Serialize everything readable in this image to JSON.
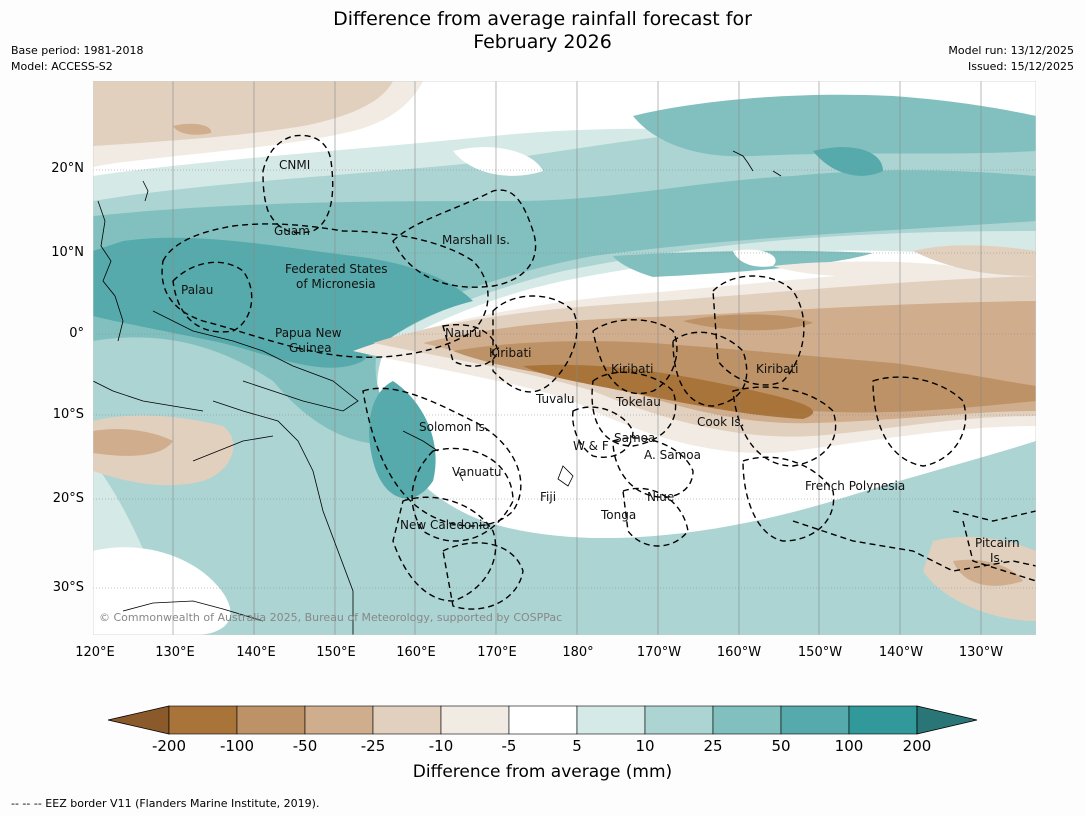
{
  "title": {
    "line1": "Difference from average rainfall forecast for",
    "line2": "February 2026"
  },
  "meta": {
    "base_period": "Base period: 1981-2018",
    "model": "Model: ACCESS-S2",
    "model_run": "Model run: 13/12/2025",
    "issued": "Issued: 15/12/2025"
  },
  "axes": {
    "lat_ticks": [
      "20°N",
      "10°N",
      "0°",
      "10°S",
      "20°S",
      "30°S"
    ],
    "lon_ticks": [
      "120°E",
      "130°E",
      "140°E",
      "150°E",
      "160°E",
      "170°E",
      "180°",
      "170°W",
      "160°W",
      "150°W",
      "140°W",
      "130°W"
    ]
  },
  "map_labels": {
    "cnmi": "CNMI",
    "guam": "Guam",
    "marshall": "Marshall Is.",
    "fsm_1": "Federated States",
    "fsm_2": "of Micronesia",
    "palau": "Palau",
    "png_1": "Papua New",
    "png_2": "Guinea",
    "nauru": "Nauru",
    "kiribati_w": "Kiribati",
    "kiribati_c": "Kiribati",
    "kiribati_e": "Kiribati",
    "tuvalu": "Tuvalu",
    "tokelau": "Tokelau",
    "cook": "Cook Is.",
    "solomon": "Solomon Is.",
    "samoa": "Samoa",
    "wf": "W & F",
    "asamoa": "A. Samoa",
    "vanuatu": "Vanuatu",
    "fiji": "Fiji",
    "niue": "Niue",
    "tonga": "Tonga",
    "frpoly": "French Polynesia",
    "newcal": "New Caledonia",
    "pitcairn_1": "Pitcairn",
    "pitcairn_2": "Is.",
    "copyright": "© Commonwealth of Australia 2025, Bureau of Meteorology, supported by COSPPac"
  },
  "colorbar": {
    "colors": [
      "#8b5a2b",
      "#a9743a",
      "#bd9266",
      "#d0ad8d",
      "#e2d0bf",
      "#f1ebe4",
      "#ffffff",
      "#d5e9e7",
      "#abd4d2",
      "#82c0bf",
      "#56aaab",
      "#31999a",
      "#2a7676"
    ],
    "labels": [
      "-200",
      "-100",
      "-50",
      "-25",
      "-10",
      "-5",
      "5",
      "10",
      "25",
      "50",
      "100",
      "200"
    ],
    "title": "Difference from average (mm)"
  },
  "footnote": "--  --  -- EEZ border V11 (Flanders Marine Institute, 2019)."
}
